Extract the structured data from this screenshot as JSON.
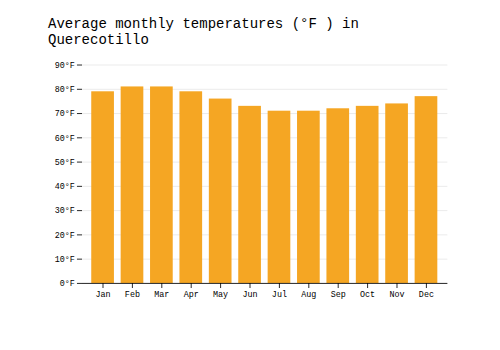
{
  "chart_data": {
    "type": "bar",
    "title": "Average monthly temperatures (°F ) in Querecotillo",
    "categories": [
      "Jan",
      "Feb",
      "Mar",
      "Apr",
      "May",
      "Jun",
      "Jul",
      "Aug",
      "Sep",
      "Oct",
      "Nov",
      "Dec"
    ],
    "values": [
      79,
      81,
      81,
      79,
      76,
      73,
      71,
      71,
      72,
      73,
      74,
      77
    ],
    "color": "#F5A623",
    "ylim": [
      0,
      90
    ],
    "yticks": [
      {
        "value": 0,
        "label": "0°F"
      },
      {
        "value": 10,
        "label": "10°F"
      },
      {
        "value": 20,
        "label": "20°F"
      },
      {
        "value": 30,
        "label": "30°F"
      },
      {
        "value": 40,
        "label": "40°F"
      },
      {
        "value": 50,
        "label": "50°F"
      },
      {
        "value": 60,
        "label": "60°F"
      },
      {
        "value": 70,
        "label": "70°F"
      },
      {
        "value": 80,
        "label": "80°F"
      },
      {
        "value": 90,
        "label": "90°F"
      }
    ],
    "grid": true
  }
}
